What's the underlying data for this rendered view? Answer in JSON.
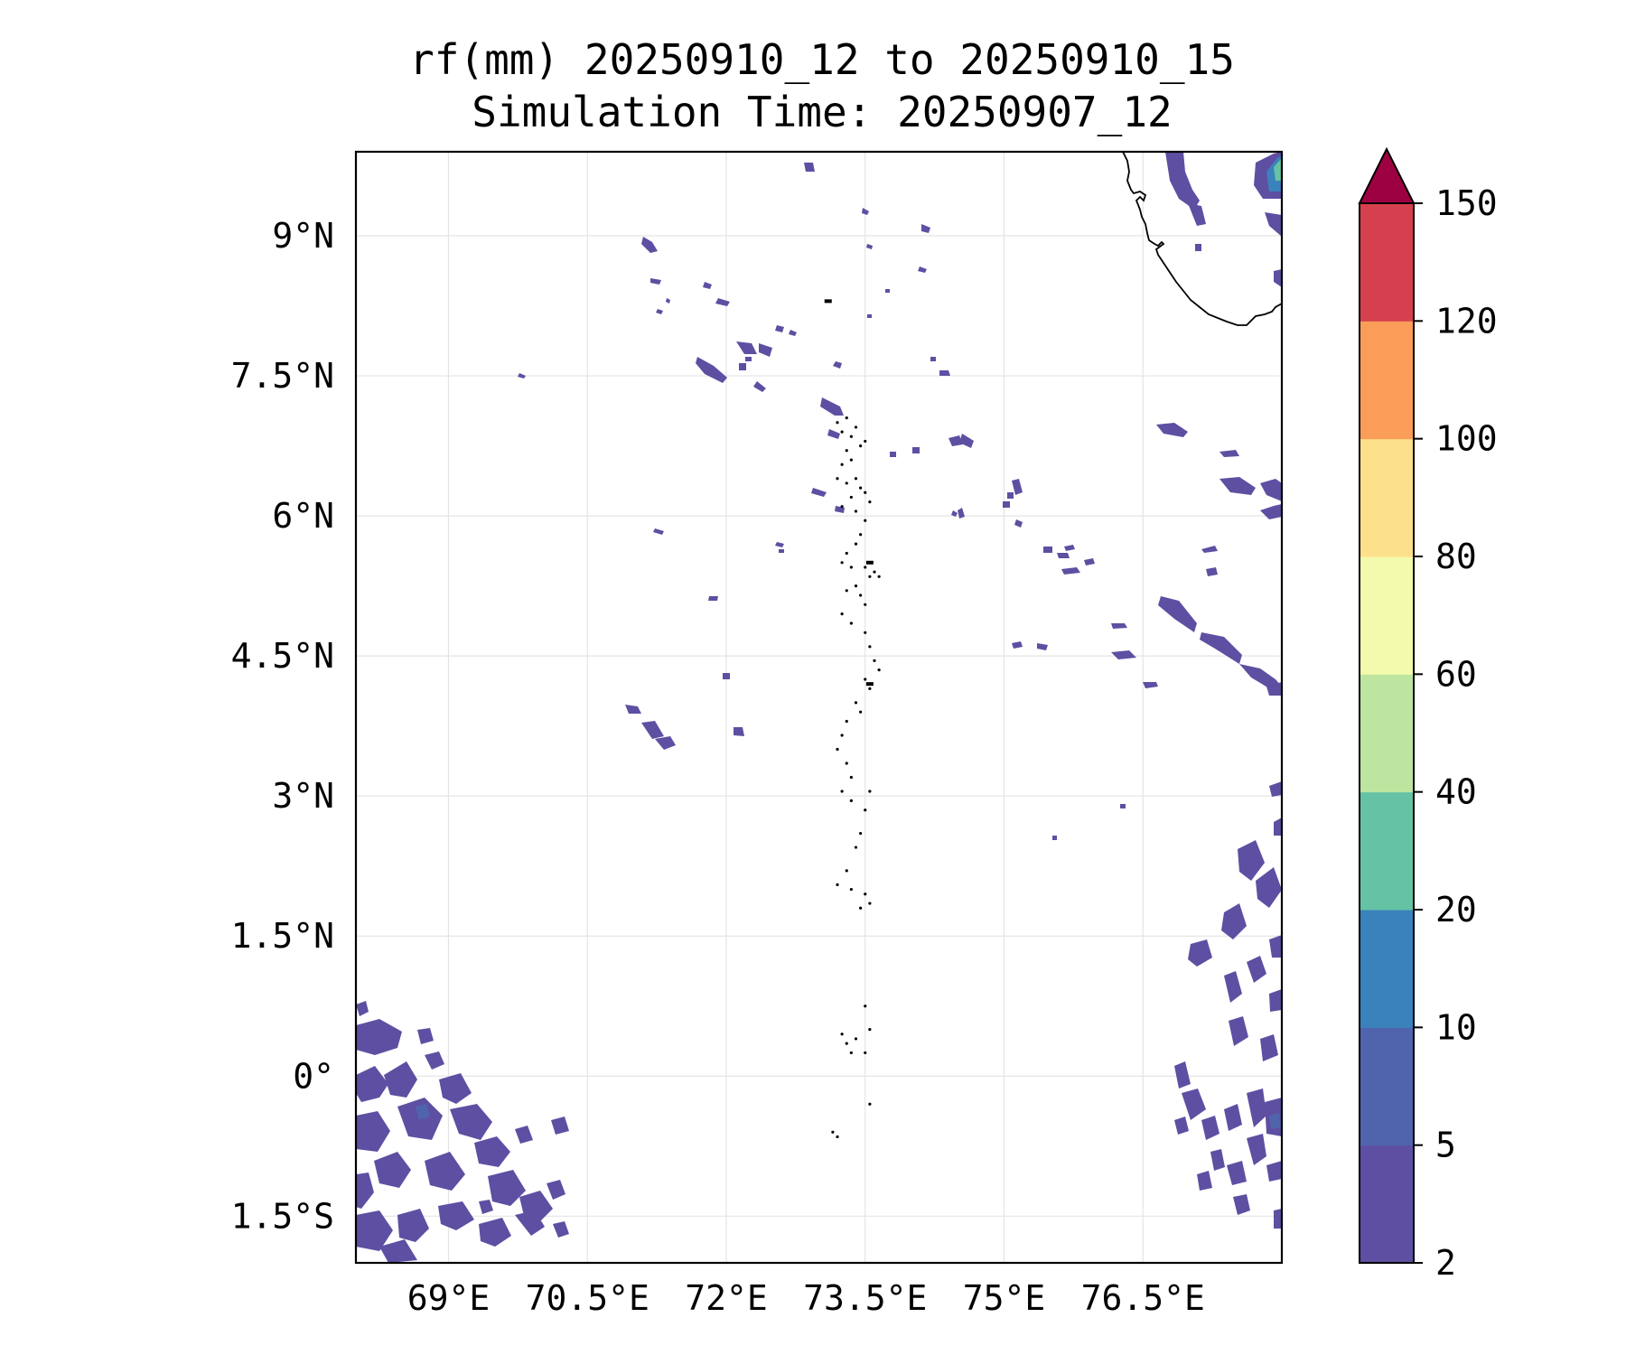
{
  "figure": {
    "title_line1": "rf(mm) 20250910_12 to 20250910_15",
    "title_line2": "Simulation Time: 20250907_12"
  },
  "map": {
    "lon_range": [
      68.0,
      78.0
    ],
    "lat_range": [
      -2.0,
      9.9
    ],
    "lon_ticks": [
      {
        "value": 69.0,
        "label": "69°E"
      },
      {
        "value": 70.5,
        "label": "70.5°E"
      },
      {
        "value": 72.0,
        "label": "72°E"
      },
      {
        "value": 73.5,
        "label": "73.5°E"
      },
      {
        "value": 75.0,
        "label": "75°E"
      },
      {
        "value": 76.5,
        "label": "76.5°E"
      }
    ],
    "lat_ticks": [
      {
        "value": 9.0,
        "label": "9°N"
      },
      {
        "value": 7.5,
        "label": "7.5°N"
      },
      {
        "value": 6.0,
        "label": "6°N"
      },
      {
        "value": 4.5,
        "label": "4.5°N"
      },
      {
        "value": 3.0,
        "label": "3°N"
      },
      {
        "value": 1.5,
        "label": "1.5°N"
      },
      {
        "value": 0.0,
        "label": "0°"
      },
      {
        "value": -1.5,
        "label": "1.5°S"
      }
    ],
    "gridlines": true,
    "rain_color_low": "#5e4fa2",
    "rain_color_mid": "#3288bd",
    "rain_color_high": "#66c2a5",
    "coast_color": "#000000"
  },
  "colorbar": {
    "levels": [
      2,
      5,
      10,
      20,
      40,
      60,
      80,
      100,
      120,
      150
    ],
    "tick_labels": [
      "2",
      "5",
      "10",
      "20",
      "40",
      "60",
      "80",
      "100",
      "120",
      "150"
    ],
    "colors": [
      "#5e4fa2",
      "#4f64ad",
      "#3a82bc",
      "#66c2a5",
      "#bde5a0",
      "#f4faad",
      "#fde08b",
      "#f99d59",
      "#d6404e"
    ],
    "extend_max_color": "#9e0142",
    "extend": "max"
  }
}
